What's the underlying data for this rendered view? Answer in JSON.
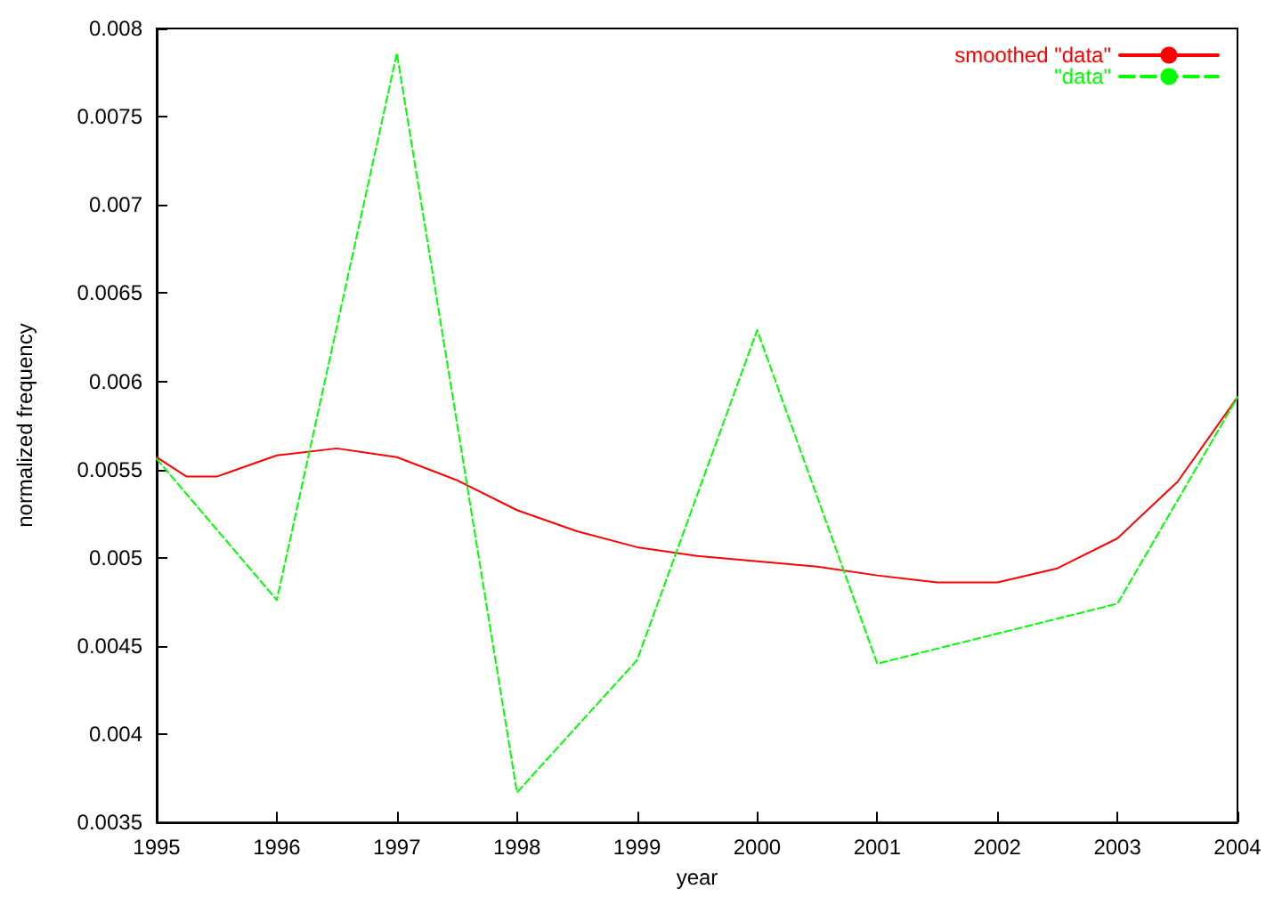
{
  "chart_data": {
    "type": "line",
    "xlabel": "year",
    "ylabel": "normalized frequency",
    "xlim": [
      1995,
      2004
    ],
    "xticks": [
      1995,
      1996,
      1997,
      1998,
      1999,
      2000,
      2001,
      2002,
      2003,
      2004
    ],
    "ylim": [
      0.0035,
      0.008
    ],
    "yticks": [
      0.0035,
      0.004,
      0.0045,
      0.005,
      0.0055,
      0.006,
      0.0065,
      0.007,
      0.0075,
      0.008
    ],
    "legend": "top right",
    "grid": false,
    "marker": "none",
    "series": [
      {
        "name": "smoothed \"data\"",
        "color": "#ff0000",
        "line_style": "solid",
        "x": [
          1995,
          1995.25,
          1995.5,
          1996,
          1996.5,
          1997,
          1997.5,
          1998,
          1998.5,
          1999,
          1999.5,
          2000,
          2000.5,
          2001,
          2001.5,
          2002,
          2002.5,
          2003,
          2003.5,
          2004
        ],
        "values": [
          0.00557,
          0.00546,
          0.00546,
          0.00558,
          0.00562,
          0.00557,
          0.00544,
          0.00527,
          0.00515,
          0.00506,
          0.00501,
          0.00498,
          0.00495,
          0.0049,
          0.00486,
          0.00486,
          0.00494,
          0.00511,
          0.00543,
          0.00591
        ]
      },
      {
        "name": "\"data\"",
        "color": "#00ff00",
        "line_style": "dashed",
        "x": [
          1995,
          1996,
          1997,
          1998,
          1999,
          2000,
          2001,
          2002,
          2003,
          2004
        ],
        "values": [
          0.00556,
          0.00476,
          0.00786,
          0.00367,
          0.00442,
          0.00629,
          0.0044,
          0.00457,
          0.00474,
          0.00591
        ]
      }
    ]
  }
}
